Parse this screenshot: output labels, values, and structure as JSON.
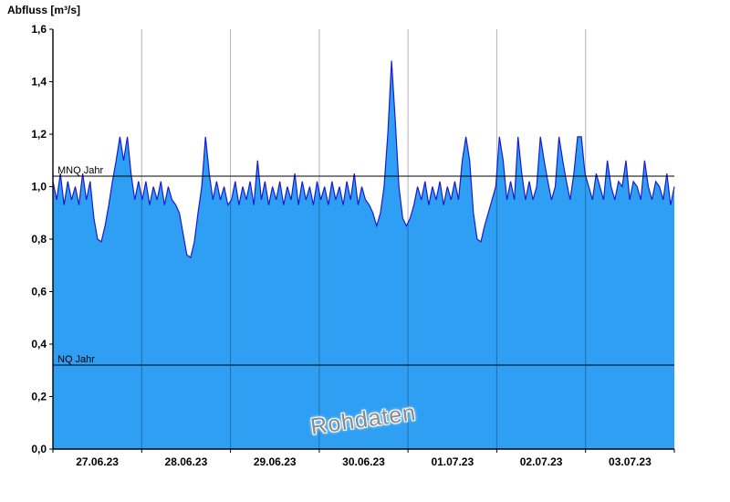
{
  "chart_data": {
    "type": "area",
    "ylabel": "Abfluss [m³/s]",
    "watermark": "Rohdaten",
    "ylim": [
      0,
      1.6
    ],
    "yticks": [
      0,
      0.2,
      0.4,
      0.6,
      0.8,
      1.0,
      1.2,
      1.4,
      1.6
    ],
    "ytick_labels": [
      "0,0",
      "0,2",
      "0,4",
      "0,6",
      "0,8",
      "1,0",
      "1,2",
      "1,4",
      "1,6"
    ],
    "x_day_labels": [
      "27.06.23",
      "28.06.23",
      "29.06.23",
      "30.06.23",
      "01.07.23",
      "02.07.23",
      "03.07.23"
    ],
    "hours_per_point": 1,
    "values": [
      1.02,
      0.95,
      1.05,
      0.93,
      1.02,
      0.95,
      1.0,
      0.93,
      1.05,
      0.95,
      1.02,
      0.88,
      0.8,
      0.79,
      0.85,
      0.93,
      1.02,
      1.1,
      1.19,
      1.1,
      1.19,
      1.05,
      0.95,
      1.02,
      0.95,
      1.02,
      0.93,
      1.0,
      0.95,
      1.02,
      0.93,
      1.0,
      0.95,
      0.93,
      0.9,
      0.82,
      0.74,
      0.73,
      0.79,
      0.9,
      1.0,
      1.19,
      1.05,
      0.95,
      1.02,
      0.95,
      1.0,
      0.93,
      0.95,
      1.02,
      0.93,
      1.0,
      0.95,
      1.02,
      0.93,
      1.1,
      0.95,
      1.02,
      0.93,
      1.0,
      0.95,
      1.02,
      0.93,
      1.0,
      0.95,
      1.05,
      0.93,
      1.02,
      0.95,
      1.0,
      0.93,
      1.02,
      0.95,
      1.0,
      0.93,
      1.02,
      0.95,
      1.0,
      0.93,
      1.02,
      0.95,
      1.05,
      0.93,
      1.0,
      0.95,
      0.93,
      0.9,
      0.85,
      0.9,
      1.0,
      1.2,
      1.48,
      1.25,
      1.0,
      0.88,
      0.85,
      0.88,
      0.93,
      1.0,
      0.95,
      1.02,
      0.93,
      1.0,
      0.95,
      1.02,
      0.93,
      1.0,
      0.95,
      1.02,
      0.95,
      1.1,
      1.19,
      1.1,
      0.9,
      0.8,
      0.79,
      0.85,
      0.9,
      0.95,
      1.0,
      1.19,
      1.1,
      0.95,
      1.02,
      0.95,
      1.19,
      1.05,
      0.95,
      1.02,
      0.95,
      1.0,
      1.19,
      1.1,
      1.02,
      0.95,
      1.0,
      1.19,
      1.1,
      1.02,
      0.95,
      1.05,
      1.19,
      1.19,
      1.05,
      1.0,
      0.95,
      1.05,
      1.0,
      0.95,
      1.1,
      1.0,
      0.95,
      1.02,
      1.0,
      1.1,
      0.95,
      1.02,
      1.0,
      0.95,
      1.1,
      1.0,
      0.95,
      1.02,
      1.0,
      0.95,
      1.05,
      0.93,
      1.0
    ],
    "reference_lines": [
      {
        "label": "MNQ Jahr",
        "value": 1.04
      },
      {
        "label": "NQ Jahr",
        "value": 0.32
      }
    ],
    "colors": {
      "area_fill": "#2e9ff2",
      "line": "#1a1ad2",
      "reference_line": "#000000",
      "grid": "rgba(0,0,30,0.30)",
      "axis": "#000000",
      "watermark": "#8a8a8a"
    }
  }
}
